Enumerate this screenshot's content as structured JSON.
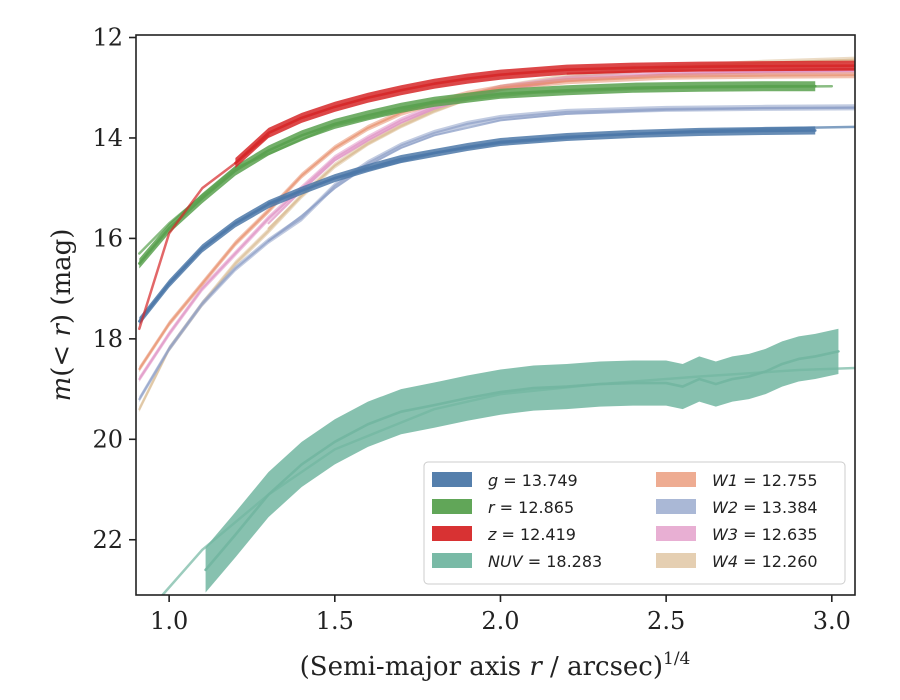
{
  "chart_data": {
    "type": "line",
    "xlabel_main": "(Semi-major axis ",
    "xlabel_var": "r",
    "xlabel_rest": " / arcsec)",
    "xlabel_sup": "1/4",
    "ylabel_main": "m",
    "ylabel_rest": "(< ",
    "ylabel_var": "r",
    "ylabel_end": ") (mag)",
    "xlim": [
      0.9,
      3.07
    ],
    "ylim": [
      23.1,
      11.95
    ],
    "y_inverted": true,
    "grid": false,
    "legend_position": "lower-right",
    "xticks": [
      1.0,
      1.5,
      2.0,
      2.5,
      3.0
    ],
    "xtick_labels": [
      "1.0",
      "1.5",
      "2.0",
      "2.5",
      "3.0"
    ],
    "yticks": [
      12,
      14,
      16,
      18,
      20,
      22
    ],
    "ytick_labels": [
      "12",
      "14",
      "16",
      "18",
      "20",
      "22"
    ],
    "series": [
      {
        "name": "g",
        "legend_value": "13.749",
        "color": "#4c78a8",
        "band_width_mag": 0.08,
        "x": [
          0.91,
          1.0,
          1.1,
          1.2,
          1.3,
          1.4,
          1.5,
          1.6,
          1.7,
          1.8,
          1.9,
          2.0,
          2.2,
          2.4,
          2.6,
          2.8,
          2.95
        ],
        "y": [
          17.65,
          16.9,
          16.2,
          15.7,
          15.32,
          15.05,
          14.8,
          14.6,
          14.42,
          14.3,
          14.18,
          14.08,
          13.98,
          13.92,
          13.88,
          13.86,
          13.85
        ],
        "model_x": [
          1.3,
          1.5,
          1.8,
          2.0,
          2.3,
          2.6,
          2.9,
          3.07
        ],
        "model_y": [
          15.3,
          14.8,
          14.3,
          14.1,
          13.95,
          13.86,
          13.8,
          13.78
        ]
      },
      {
        "name": "r",
        "legend_value": "12.865",
        "color": "#59a14f",
        "band_width_mag": 0.1,
        "x": [
          0.91,
          1.0,
          1.1,
          1.2,
          1.3,
          1.4,
          1.5,
          1.6,
          1.7,
          1.8,
          1.9,
          2.0,
          2.2,
          2.4,
          2.6,
          2.8,
          2.95
        ],
        "y": [
          16.5,
          15.8,
          15.2,
          14.65,
          14.25,
          13.95,
          13.72,
          13.55,
          13.4,
          13.28,
          13.2,
          13.12,
          13.05,
          13.0,
          12.98,
          12.97,
          12.97
        ],
        "model_x": [
          0.91,
          1.0,
          1.2,
          1.5,
          1.8,
          2.1,
          2.5,
          3.0
        ],
        "model_y": [
          16.3,
          15.7,
          14.6,
          13.75,
          13.3,
          13.1,
          13.0,
          12.97
        ]
      },
      {
        "name": "z",
        "legend_value": "12.419",
        "color": "#d62728",
        "band_width_mag": 0.1,
        "x": [
          1.2,
          1.3,
          1.4,
          1.5,
          1.6,
          1.7,
          1.8,
          1.9,
          2.0,
          2.2,
          2.4,
          2.6,
          2.8,
          3.07
        ],
        "y": [
          14.5,
          13.9,
          13.6,
          13.38,
          13.2,
          13.05,
          12.92,
          12.82,
          12.74,
          12.64,
          12.6,
          12.58,
          12.57,
          12.56
        ],
        "model_x": [
          0.91,
          1.0,
          1.1,
          1.2,
          1.3
        ],
        "model_y": [
          17.8,
          15.9,
          15.0,
          14.5,
          13.95
        ],
        "tail_x": [
          2.2,
          2.5,
          2.8,
          3.07
        ],
        "tail_y": [
          12.72,
          12.66,
          12.64,
          12.63
        ]
      },
      {
        "name": "NUV",
        "legend_value": "18.283",
        "color": "#72b6a1",
        "band_width_mag": 0.45,
        "x": [
          1.11,
          1.2,
          1.3,
          1.4,
          1.5,
          1.6,
          1.7,
          1.8,
          1.9,
          2.0,
          2.1,
          2.2,
          2.3,
          2.4,
          2.5,
          2.55,
          2.6,
          2.65,
          2.7,
          2.75,
          2.8,
          2.85,
          2.9,
          2.95,
          3.02
        ],
        "y": [
          22.6,
          21.9,
          21.1,
          20.5,
          20.05,
          19.7,
          19.45,
          19.32,
          19.18,
          19.06,
          18.98,
          18.95,
          18.9,
          18.88,
          18.88,
          18.95,
          18.8,
          18.9,
          18.8,
          18.75,
          18.65,
          18.5,
          18.4,
          18.35,
          18.25
        ],
        "model_x": [
          0.98,
          1.1,
          1.3,
          1.5,
          1.8,
          2.0,
          2.3,
          2.6,
          2.9,
          3.07
        ],
        "model_y": [
          23.1,
          22.2,
          21.1,
          20.2,
          19.4,
          19.1,
          18.9,
          18.75,
          18.62,
          18.58
        ]
      },
      {
        "name": "W1",
        "legend_value": "12.755",
        "color": "#e8906d",
        "band_width_mag": 0.06,
        "x": [
          0.91,
          1.0,
          1.1,
          1.2,
          1.3,
          1.4,
          1.5,
          1.6,
          1.7,
          1.8,
          1.9,
          2.0,
          2.2,
          2.5,
          2.8,
          3.07
        ],
        "y": [
          18.6,
          17.7,
          16.9,
          16.1,
          15.45,
          14.75,
          14.2,
          13.8,
          13.5,
          13.3,
          13.12,
          13.0,
          12.87,
          12.78,
          12.76,
          12.75
        ],
        "model_x": [],
        "model_y": []
      },
      {
        "name": "W2",
        "legend_value": "13.384",
        "color": "#8ea0c8",
        "band_width_mag": 0.06,
        "x": [
          0.91,
          1.0,
          1.1,
          1.2,
          1.3,
          1.4,
          1.5,
          1.6,
          1.7,
          1.8,
          1.9,
          2.0,
          2.2,
          2.5,
          2.8,
          3.07
        ],
        "y": [
          19.2,
          18.2,
          17.3,
          16.6,
          16.05,
          15.6,
          14.95,
          14.5,
          14.15,
          13.9,
          13.72,
          13.6,
          13.48,
          13.42,
          13.4,
          13.39
        ],
        "model_x": [
          1.3,
          1.4,
          1.5,
          1.6,
          1.7,
          1.8,
          2.0,
          2.2,
          2.5,
          2.8,
          3.07
        ],
        "model_y": [
          16.05,
          15.55,
          15.0,
          14.55,
          14.2,
          13.95,
          13.65,
          13.52,
          13.44,
          13.41,
          13.4
        ]
      },
      {
        "name": "W3",
        "legend_value": "12.635",
        "color": "#e094c4",
        "band_width_mag": 0.06,
        "x": [
          0.91,
          1.0,
          1.1,
          1.2,
          1.3,
          1.4,
          1.5,
          1.6,
          1.7,
          1.8,
          1.9,
          2.0,
          2.2,
          2.5,
          2.8,
          3.07
        ],
        "y": [
          18.8,
          17.9,
          17.0,
          16.3,
          15.6,
          15.0,
          14.4,
          14.0,
          13.65,
          13.38,
          13.18,
          13.0,
          12.82,
          12.72,
          12.68,
          12.66
        ],
        "model_x": [
          1.3,
          1.4,
          1.5,
          1.6,
          1.7,
          1.8,
          2.0,
          2.2,
          2.5,
          2.8,
          3.07
        ],
        "model_y": [
          15.7,
          15.05,
          14.45,
          14.05,
          13.7,
          13.42,
          13.05,
          12.86,
          12.74,
          12.69,
          12.66
        ]
      },
      {
        "name": "W4",
        "legend_value": "12.260",
        "color": "#dcbf98",
        "band_width_mag": 0.06,
        "x": [
          0.91,
          1.0,
          1.1,
          1.2,
          1.3,
          1.4,
          1.5,
          1.6,
          1.7,
          1.8,
          1.9,
          2.0,
          2.2,
          2.5,
          2.8,
          3.07
        ],
        "y": [
          19.4,
          18.2,
          17.3,
          16.5,
          15.85,
          15.15,
          14.55,
          14.1,
          13.75,
          13.45,
          13.2,
          13.0,
          12.78,
          12.6,
          12.5,
          12.44
        ],
        "model_x": [
          1.3,
          1.4,
          1.5,
          1.6,
          1.7,
          1.8,
          2.0,
          2.2,
          2.5,
          2.8,
          3.07
        ],
        "model_y": [
          15.8,
          15.15,
          14.55,
          14.12,
          13.77,
          13.47,
          13.02,
          12.8,
          12.62,
          12.5,
          12.44
        ]
      }
    ]
  }
}
